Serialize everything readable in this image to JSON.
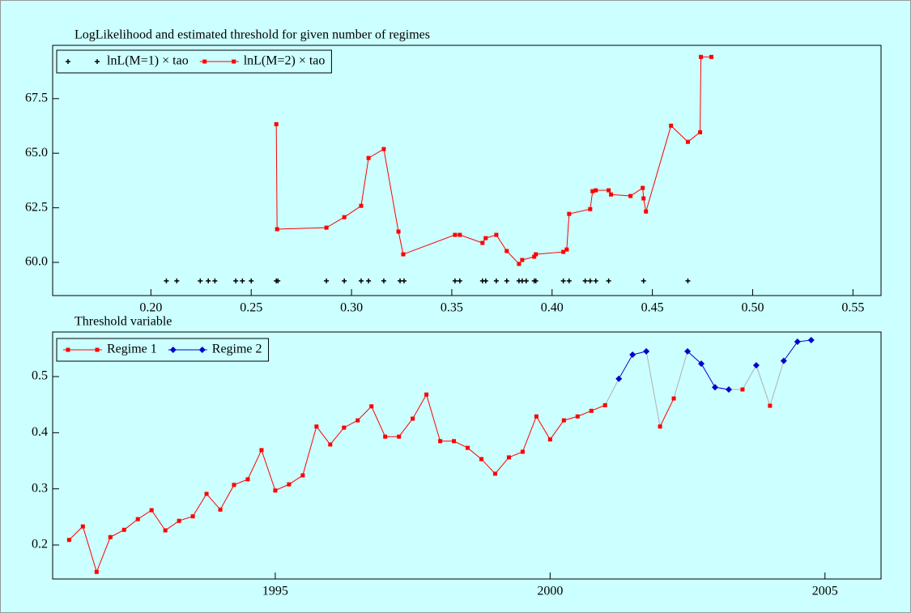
{
  "chart_data": [
    {
      "type": "line",
      "title": "LogLikelihood and estimated threshold for given number of regimes",
      "xlim": [
        0.151,
        0.564
      ],
      "ylim": [
        58.48,
        69.94
      ],
      "xticks": [
        {
          "value": 0.2,
          "label": "0.20"
        },
        0.25,
        {
          "value": 0.3,
          "label": "0.30"
        },
        0.35,
        {
          "value": 0.4,
          "label": "0.40"
        },
        0.45,
        {
          "value": 0.5,
          "label": "0.50"
        },
        0.55
      ],
      "yticks": [
        {
          "value": 60,
          "label": "60.0"
        },
        62.5,
        {
          "value": 65,
          "label": "65.0"
        },
        67.5
      ],
      "series": [
        {
          "name": "lnL(M=1) × tao",
          "color": "#000000",
          "marker": "plus",
          "line": false,
          "x": [
            0.2077,
            0.2129,
            0.2246,
            0.2286,
            0.2319,
            0.2423,
            0.2456,
            0.25,
            0.2625,
            0.2633,
            0.2875,
            0.2964,
            0.3048,
            0.3085,
            0.3161,
            0.3242,
            0.3262,
            0.3516,
            0.354,
            0.3653,
            0.3669,
            0.3722,
            0.3774,
            0.3835,
            0.3851,
            0.3871,
            0.3911,
            0.3919,
            0.4056,
            0.4085,
            0.4165,
            0.419,
            0.4218,
            0.4282,
            0.4456,
            0.4677
          ],
          "values": [
            59.15,
            59.15,
            59.15,
            59.15,
            59.15,
            59.15,
            59.15,
            59.15,
            59.15,
            59.15,
            59.15,
            59.15,
            59.15,
            59.15,
            59.15,
            59.15,
            59.15,
            59.15,
            59.15,
            59.15,
            59.15,
            59.15,
            59.15,
            59.15,
            59.15,
            59.15,
            59.15,
            59.15,
            59.15,
            59.15,
            59.15,
            59.15,
            59.15,
            59.15,
            59.15,
            59.15
          ]
        },
        {
          "name": "lnL(M=2) × tao",
          "color": "#ff0000",
          "marker": "square",
          "line": true,
          "x": [
            0.2625,
            0.2629,
            0.2875,
            0.2964,
            0.3048,
            0.3085,
            0.3161,
            0.3234,
            0.3258,
            0.3516,
            0.354,
            0.3653,
            0.3669,
            0.3722,
            0.3774,
            0.3835,
            0.3851,
            0.3911,
            0.3919,
            0.4056,
            0.4073,
            0.4085,
            0.419,
            0.4202,
            0.4218,
            0.4282,
            0.4294,
            0.4391,
            0.4452,
            0.4456,
            0.4468,
            0.4593,
            0.4677,
            0.4738,
            0.4742,
            0.4794
          ],
          "values": [
            66.33,
            61.52,
            61.59,
            62.07,
            62.59,
            64.78,
            65.19,
            61.41,
            60.37,
            61.26,
            61.26,
            60.89,
            61.11,
            61.26,
            60.52,
            59.93,
            60.11,
            60.26,
            60.37,
            60.48,
            60.59,
            62.22,
            62.44,
            63.26,
            63.3,
            63.3,
            63.11,
            63.04,
            63.41,
            62.93,
            62.33,
            66.26,
            65.52,
            65.96,
            69.41,
            69.41
          ]
        }
      ]
    },
    {
      "type": "line",
      "title": "Threshold variable",
      "xlim": [
        1990.95,
        2006.02
      ],
      "ylim": [
        0.1394,
        0.5794
      ],
      "xticks": [
        1995,
        2000,
        2005
      ],
      "yticks": [
        0.2,
        0.3,
        0.4,
        0.5
      ],
      "x": [
        1991.25,
        1991.5,
        1991.75,
        1992,
        1992.25,
        1992.5,
        1992.75,
        1993,
        1993.25,
        1993.5,
        1993.75,
        1994,
        1994.25,
        1994.5,
        1994.75,
        1995,
        1995.25,
        1995.5,
        1995.75,
        1996,
        1996.25,
        1996.5,
        1996.75,
        1997,
        1997.25,
        1997.5,
        1997.75,
        1998,
        1998.25,
        1998.5,
        1998.75,
        1999,
        1999.25,
        1999.5,
        1999.75,
        2000,
        2000.25,
        2000.5,
        2000.75,
        2001,
        2001.25,
        2001.5,
        2001.75,
        2002,
        2002.25,
        2002.5,
        2002.75,
        2003,
        2003.25,
        2003.5,
        2003.75,
        2004,
        2004.25,
        2004.5,
        2004.75
      ],
      "series": [
        {
          "name": "Regime 1",
          "color": "#ff0000",
          "marker": "square",
          "line": true,
          "values": [
            0.209,
            0.233,
            0.152,
            0.214,
            0.227,
            0.246,
            0.262,
            0.226,
            0.243,
            0.251,
            0.291,
            0.263,
            0.307,
            0.317,
            0.369,
            0.297,
            0.308,
            0.324,
            0.411,
            0.379,
            0.409,
            0.422,
            0.447,
            0.393,
            0.393,
            0.425,
            0.468,
            0.385,
            0.385,
            0.373,
            0.353,
            0.327,
            0.356,
            0.366,
            0.429,
            0.388,
            0.422,
            0.429,
            0.439,
            0.449,
            null,
            null,
            null,
            0.411,
            0.461,
            null,
            null,
            null,
            null,
            0.477,
            null,
            0.448,
            null,
            null,
            null
          ]
        },
        {
          "name": "Regime 2",
          "color": "#0000cc",
          "marker": "diamond",
          "line": true,
          "values": [
            null,
            null,
            null,
            null,
            null,
            null,
            null,
            null,
            null,
            null,
            null,
            null,
            null,
            null,
            null,
            null,
            null,
            null,
            null,
            null,
            null,
            null,
            null,
            null,
            null,
            null,
            null,
            null,
            null,
            null,
            null,
            null,
            null,
            null,
            null,
            null,
            null,
            null,
            null,
            null,
            0.496,
            0.539,
            0.545,
            null,
            null,
            0.545,
            0.523,
            0.481,
            0.477,
            null,
            0.52,
            null,
            0.528,
            0.562,
            0.565
          ]
        }
      ]
    }
  ]
}
